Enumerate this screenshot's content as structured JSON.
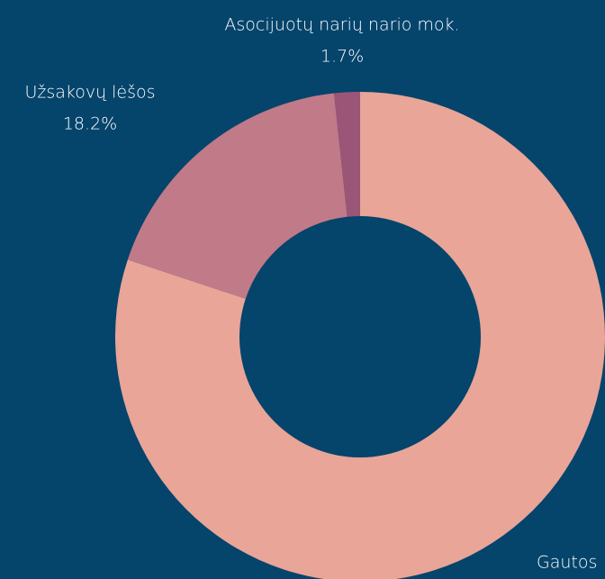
{
  "chart_data": {
    "type": "donut",
    "categories": [
      "Gautos",
      "Užsakovų lėšos",
      "Asocijuotų narių nario mok."
    ],
    "values": [
      80.1,
      18.2,
      1.7
    ],
    "value_labels": [
      null,
      "18.2%",
      "1.7%"
    ],
    "colors": [
      "#e8a598",
      "#c07a88",
      "#9b5577"
    ]
  }
}
